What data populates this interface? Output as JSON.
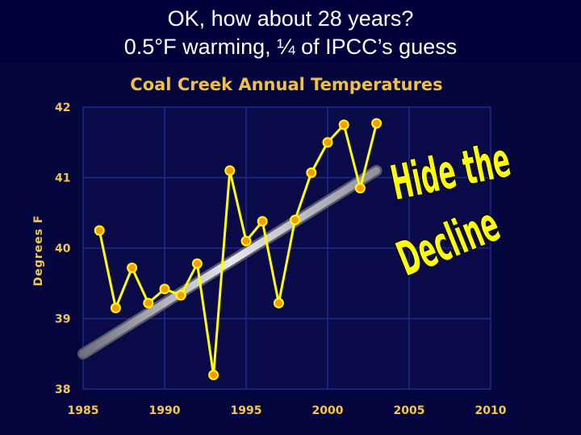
{
  "slide": {
    "title_line1": "OK, how about 28 years?",
    "title_line2": "0.5°F warming, ¼ of IPCC’s guess"
  },
  "colors": {
    "background": "#00003a",
    "plot_bg": "#0a0a48",
    "grid": "#1c2a8a",
    "line": "#ffff00",
    "marker_fill": "#ff9900",
    "marker_edge": "#ffff00",
    "axis_text": "#f4c84a",
    "trend": "#c8c8d0"
  },
  "annotations": {
    "line1": "Hide the",
    "line2": "Decline"
  },
  "chart_data": {
    "type": "line",
    "title": "Coal Creek Annual Temperatures",
    "xlabel": "",
    "ylabel": "Degrees F",
    "xlim": [
      1985,
      2010
    ],
    "ylim": [
      38,
      42
    ],
    "xticks": [
      1985,
      1990,
      1995,
      2000,
      2005,
      2010
    ],
    "yticks": [
      38,
      39,
      40,
      41,
      42
    ],
    "grid": true,
    "series": [
      {
        "x": [
          1986,
          1987,
          1988,
          1989,
          1990,
          1991,
          1992,
          1993,
          1994,
          1995,
          1996,
          1997,
          1998,
          1999,
          2000,
          2001,
          2002,
          2003
        ],
        "values": [
          40.25,
          39.15,
          39.72,
          39.22,
          39.42,
          39.33,
          39.78,
          38.2,
          41.1,
          40.1,
          40.38,
          39.22,
          40.4,
          41.07,
          41.5,
          41.75,
          40.85,
          41.77
        ]
      }
    ],
    "trend": {
      "x": [
        1985,
        2003
      ],
      "y": [
        38.5,
        41.1
      ]
    }
  }
}
